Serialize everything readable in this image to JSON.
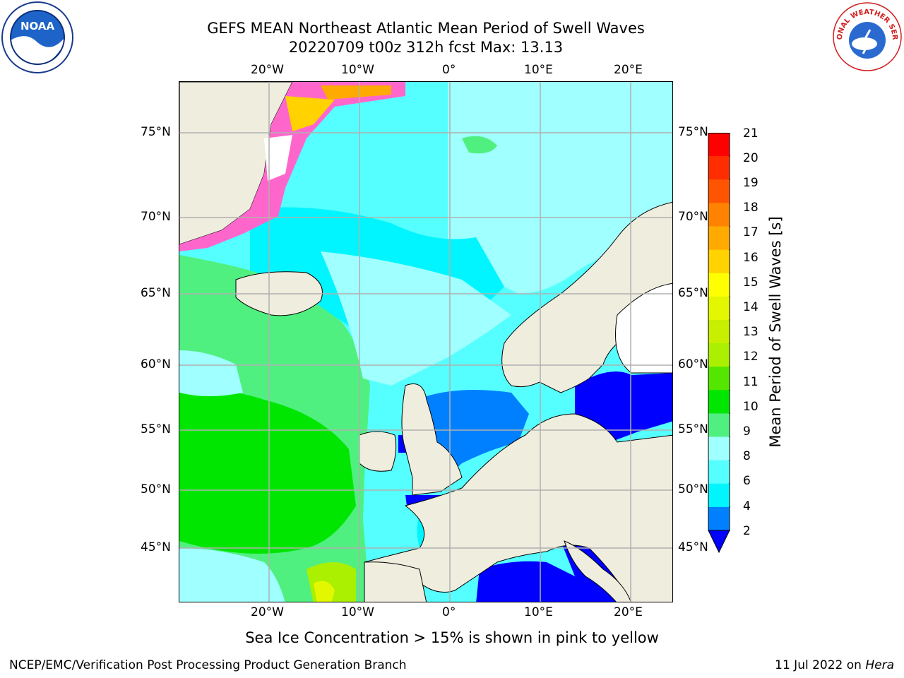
{
  "header": {
    "title_line1": "GEFS MEAN Northeast Atlantic Mean Period of Swell Waves",
    "title_line2": "20220709 t00z 312h fcst   Max: 13.13"
  },
  "logos": {
    "left": "NOAA",
    "right": "NATIONAL WEATHER SERVICE"
  },
  "map": {
    "lon_ticks_top": [
      "20°W",
      "10°W",
      "0°",
      "10°E",
      "20°E"
    ],
    "lon_ticks_bottom": [
      "20°W",
      "10°W",
      "0°",
      "10°E",
      "20°E"
    ],
    "lat_ticks_left": [
      "75°N",
      "70°N",
      "65°N",
      "60°N",
      "55°N",
      "50°N",
      "45°N"
    ],
    "lat_ticks_right": [
      "75°N",
      "70°N",
      "65°N",
      "60°N",
      "55°N",
      "50°N",
      "45°N"
    ],
    "colors": {
      "land": "#efedde",
      "coast": "#000000",
      "grid": "#b0b0b0"
    }
  },
  "colorbar": {
    "label": "Mean Period of Swell Waves [s]",
    "ticks": [
      "21",
      "20",
      "19",
      "18",
      "17",
      "16",
      "15",
      "14",
      "13",
      "12",
      "11",
      "10",
      "9",
      "8",
      "6",
      "4",
      "2"
    ],
    "colors": [
      "#ff0000",
      "#ff2d00",
      "#ff5500",
      "#ff8200",
      "#ffaa00",
      "#ffd200",
      "#ffff00",
      "#e2f700",
      "#c8ee00",
      "#aaf000",
      "#55e600",
      "#00e600",
      "#50f080",
      "#a0ffff",
      "#55ffff",
      "#00f5ff",
      "#0080ff",
      "#0000ff"
    ]
  },
  "notes": {
    "ice_note": "Sea Ice Concentration > 15% is shown in pink to yellow"
  },
  "footer": {
    "left": "NCEP/EMC/Verification Post Processing Product Generation Branch",
    "right_date": "11 Jul 2022 on ",
    "right_machine": "Hera"
  }
}
